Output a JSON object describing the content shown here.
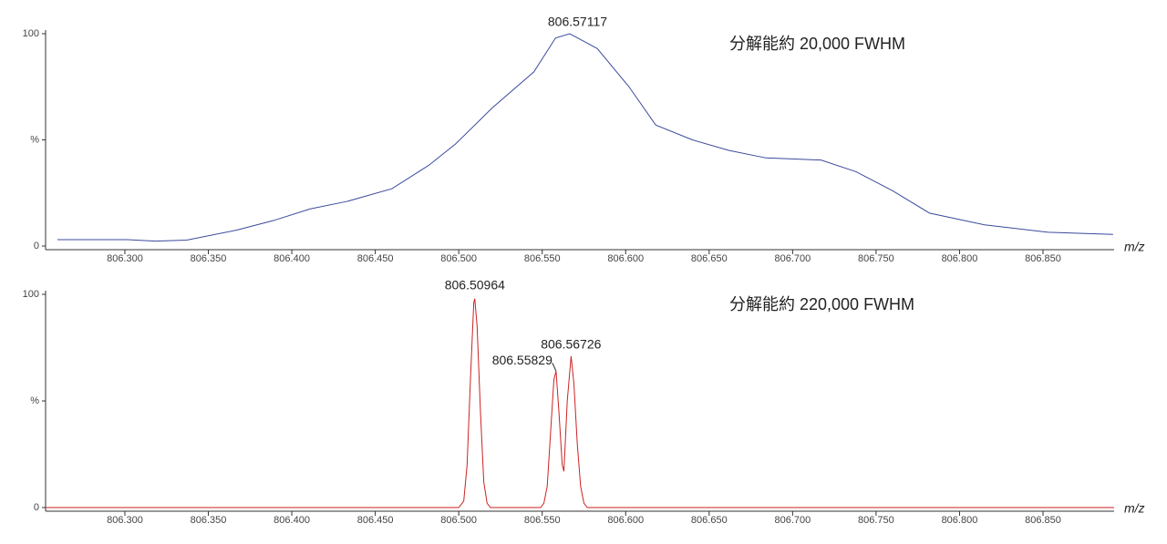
{
  "chart_data": [
    {
      "type": "line",
      "color": "#3b4a9c",
      "x": [
        806.2596,
        806.3017,
        806.318,
        806.337,
        806.367,
        806.389,
        806.411,
        806.433,
        806.46,
        806.482,
        806.498,
        806.52,
        806.545,
        806.558,
        806.5665,
        806.583,
        806.602,
        806.618,
        806.64,
        806.662,
        806.684,
        806.717,
        806.738,
        806.76,
        806.782,
        806.815,
        806.853,
        806.892
      ],
      "values": [
        3,
        3,
        2.3,
        2.8,
        7.5,
        12,
        17.5,
        21,
        27,
        38,
        48,
        65,
        82,
        98,
        100,
        93,
        75,
        57,
        50,
        45,
        41.5,
        40.5,
        35,
        26,
        15.5,
        10,
        6.5,
        5.5
      ],
      "xlim": [
        806.2525,
        806.8926
      ],
      "ylim": [
        0,
        100
      ],
      "xticks": [
        {
          "value": 806.3,
          "label": "806.300"
        },
        {
          "value": 806.35,
          "label": "806.350"
        },
        {
          "value": 806.4,
          "label": "806.400"
        },
        {
          "value": 806.45,
          "label": "806.450"
        },
        {
          "value": 806.5,
          "label": "806.500"
        },
        {
          "value": 806.55,
          "label": "806.550"
        },
        {
          "value": 806.6,
          "label": "806.600"
        },
        {
          "value": 806.65,
          "label": "806.650"
        },
        {
          "value": 806.7,
          "label": "806.700"
        },
        {
          "value": 806.75,
          "label": "806.750"
        },
        {
          "value": 806.8,
          "label": "806.800"
        },
        {
          "value": 806.85,
          "label": "806.850"
        }
      ],
      "yticks": [
        0,
        {
          "value": 50,
          "label": "%"
        },
        100
      ],
      "xlabel": "m/z",
      "note": "分解能約 20,000 FWHM",
      "annotations": [
        {
          "text": "806.57117",
          "x": 806.57117,
          "y": 100
        }
      ]
    },
    {
      "type": "line",
      "color": "#cc2222",
      "x": [
        806.2525,
        806.5,
        806.503,
        806.505,
        806.507,
        806.509,
        806.5096,
        806.511,
        806.513,
        806.515,
        806.517,
        806.519,
        806.549,
        806.551,
        806.553,
        806.555,
        806.557,
        806.5583,
        806.56,
        806.562,
        806.563,
        806.565,
        806.5673,
        806.569,
        806.571,
        806.573,
        806.575,
        806.577,
        806.8926
      ],
      "values": [
        0,
        0,
        3,
        20,
        60,
        96,
        98,
        85,
        45,
        12,
        2,
        0,
        0,
        2,
        10,
        35,
        60,
        64,
        45,
        20,
        17,
        50,
        71,
        58,
        30,
        10,
        2,
        0,
        0
      ],
      "xlim": [
        806.2525,
        806.8926
      ],
      "ylim": [
        0,
        100
      ],
      "xticks": [
        {
          "value": 806.3,
          "label": "806.300"
        },
        {
          "value": 806.35,
          "label": "806.350"
        },
        {
          "value": 806.4,
          "label": "806.400"
        },
        {
          "value": 806.45,
          "label": "806.450"
        },
        {
          "value": 806.5,
          "label": "806.500"
        },
        {
          "value": 806.55,
          "label": "806.550"
        },
        {
          "value": 806.6,
          "label": "806.600"
        },
        {
          "value": 806.65,
          "label": "806.650"
        },
        {
          "value": 806.7,
          "label": "806.700"
        },
        {
          "value": 806.75,
          "label": "806.750"
        },
        {
          "value": 806.8,
          "label": "806.800"
        },
        {
          "value": 806.85,
          "label": "806.850"
        }
      ],
      "yticks": [
        0,
        {
          "value": 50,
          "label": "%"
        },
        100
      ],
      "xlabel": "m/z",
      "note": "分解能約 220,000 FWHM",
      "annotations": [
        {
          "text": "806.50964",
          "x": 806.50964,
          "y": 98
        },
        {
          "text": "806.55829",
          "x": 806.55829,
          "y": 64
        },
        {
          "text": "806.56726",
          "x": 806.56726,
          "y": 71
        }
      ]
    }
  ]
}
